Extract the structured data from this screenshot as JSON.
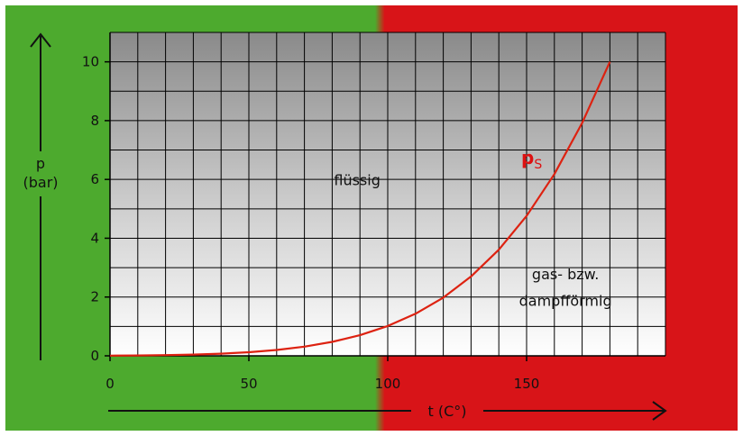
{
  "chart_data": {
    "type": "line",
    "ylabel_symbol": "p",
    "ylabel_unit": "(bar)",
    "xlabel": "t (C°)",
    "xlim": [
      0,
      200
    ],
    "ylim": [
      0,
      11
    ],
    "xticks": [
      0,
      50,
      100,
      150
    ],
    "yticks": [
      0,
      2,
      4,
      6,
      8,
      10
    ],
    "grid": true,
    "colors": {
      "liquid_region": "#4daa2e",
      "gas_region": "#d81418",
      "curve": "#dd2211"
    },
    "series": [
      {
        "name_main": "p",
        "name_sub": "S",
        "x": [
          0,
          10,
          20,
          30,
          40,
          50,
          60,
          70,
          80,
          90,
          100,
          110,
          120,
          130,
          140,
          150,
          160,
          170,
          180
        ],
        "y": [
          0.006,
          0.012,
          0.023,
          0.042,
          0.074,
          0.123,
          0.199,
          0.312,
          0.474,
          0.701,
          1.013,
          1.43,
          1.98,
          2.7,
          3.61,
          4.76,
          6.18,
          7.92,
          10.0
        ]
      }
    ],
    "annotations": [
      {
        "text": "flüssig",
        "x": 89,
        "y": 5.8
      },
      {
        "text": "gas- bzw.",
        "x": 164,
        "y": 2.6
      },
      {
        "text": "dampfförmig",
        "x": 164,
        "y": 1.7
      }
    ]
  }
}
